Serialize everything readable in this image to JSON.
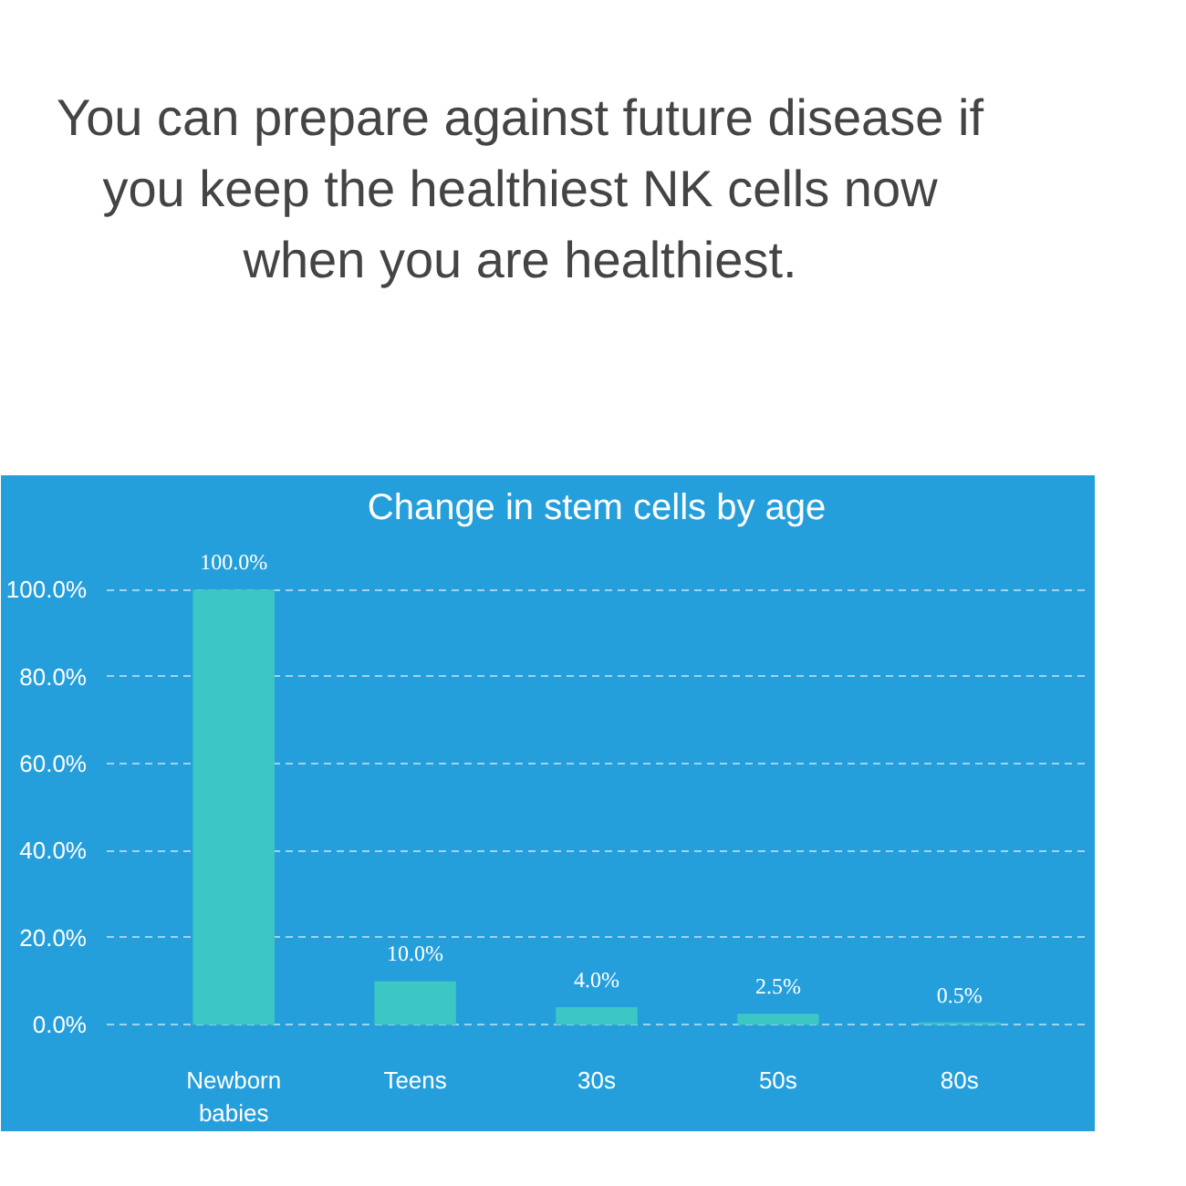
{
  "chart_data": {
    "type": "bar",
    "subtitle": "You can prepare against future disease if you keep the healthiest NK cells now when you are healthiest.",
    "title": "Change in stem cells by age",
    "categories": [
      "Newborn\nbabies",
      "Teens",
      "30s",
      "50s",
      "80s"
    ],
    "values": [
      100,
      10,
      4,
      2.5,
      0.5
    ],
    "value_labels": [
      "100.0%",
      "10.0%",
      "4.0%",
      "2.5%",
      "0.5%"
    ],
    "color": "#3cc6c4",
    "ylim": [
      -5,
      112
    ],
    "yticks": [
      {
        "value": 0,
        "label": "0.0%"
      },
      {
        "value": 20,
        "label": "20.0%"
      },
      {
        "value": 40,
        "label": "40.0%"
      },
      {
        "value": 60,
        "label": "60.0%"
      },
      {
        "value": 80,
        "label": "80.0%"
      },
      {
        "value": 100,
        "label": "100.0%"
      }
    ],
    "grid": "y"
  }
}
